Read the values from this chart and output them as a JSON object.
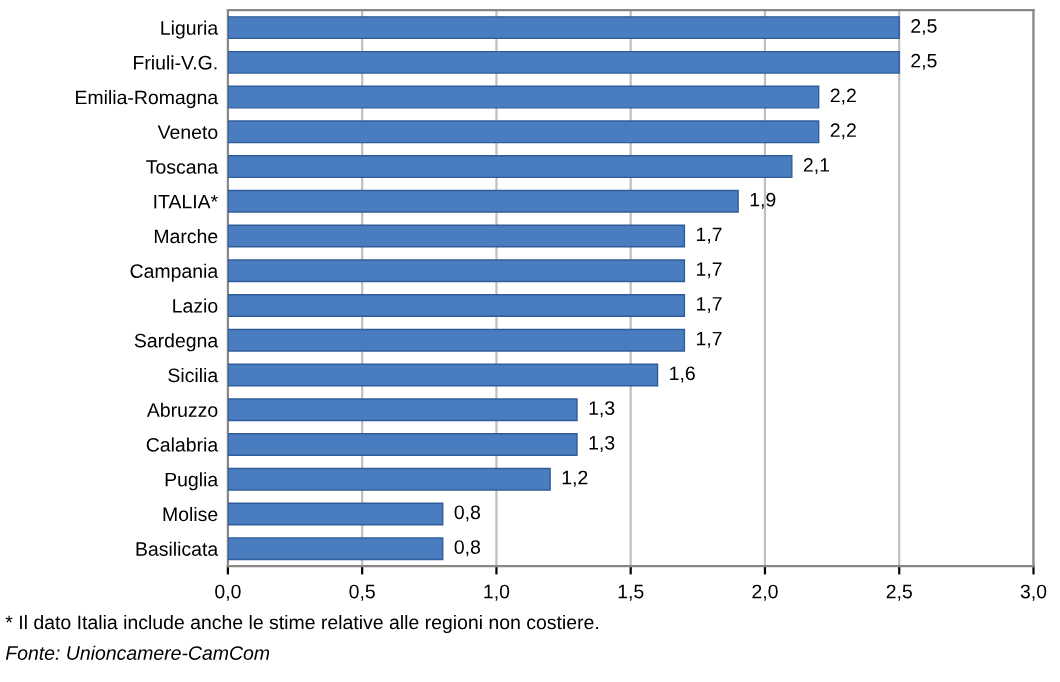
{
  "chart_data": {
    "type": "bar",
    "orientation": "horizontal",
    "categories": [
      "Liguria",
      "Friuli-V.G.",
      "Emilia-Romagna",
      "Veneto",
      "Toscana",
      "ITALIA*",
      "Marche",
      "Campania",
      "Lazio",
      "Sardegna",
      "Sicilia",
      "Abruzzo",
      "Calabria",
      "Puglia",
      "Molise",
      "Basilicata"
    ],
    "values": [
      2.5,
      2.5,
      2.2,
      2.2,
      2.1,
      1.9,
      1.7,
      1.7,
      1.7,
      1.7,
      1.6,
      1.3,
      1.3,
      1.2,
      0.8,
      0.8
    ],
    "value_labels": [
      "2,5",
      "2,5",
      "2,2",
      "2,2",
      "2,1",
      "1,9",
      "1,7",
      "1,7",
      "1,7",
      "1,7",
      "1,6",
      "1,3",
      "1,3",
      "1,2",
      "0,8",
      "0,8"
    ],
    "color": "#4a7dbf",
    "xlim": [
      0,
      3
    ],
    "xticks": [
      {
        "value": 0,
        "label": "0,0"
      },
      {
        "value": 0.5,
        "label": "0,5"
      },
      {
        "value": 1,
        "label": "1,0"
      },
      {
        "value": 1.5,
        "label": "1,5"
      },
      {
        "value": 2,
        "label": "2,0"
      },
      {
        "value": 2.5,
        "label": "2,5"
      },
      {
        "value": 3,
        "label": "3,0"
      }
    ],
    "grid": "x",
    "annotations": [
      "* Il dato Italia include anche le stime relative alle regioni non costiere.",
      "Fonte: Unioncamere-CamCom"
    ]
  }
}
